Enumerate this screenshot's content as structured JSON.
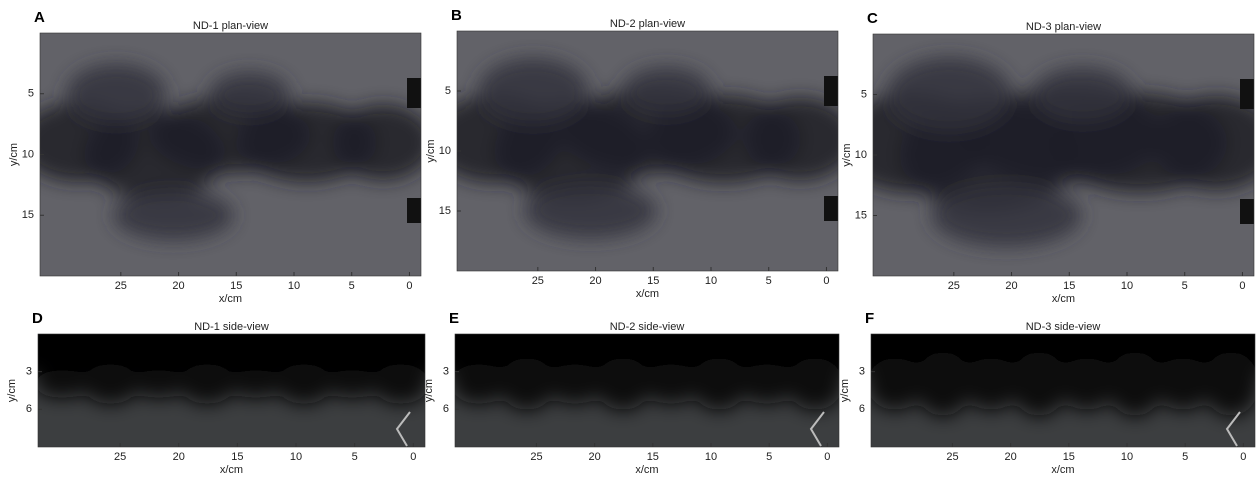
{
  "panels": [
    {
      "label": "A",
      "title": "ND-1 plan-view",
      "xlabel": "x/cm",
      "ylabel": "y/cm",
      "xlim": [
        32,
        -1
      ],
      "ylim": [
        0,
        20
      ],
      "xticks": [
        25,
        20,
        15,
        10,
        5,
        0
      ],
      "yticks": [
        5,
        10,
        15
      ]
    },
    {
      "label": "B",
      "title": "ND-2 plan-view",
      "xlabel": "x/cm",
      "ylabel": "y/cm",
      "xlim": [
        32,
        -1
      ],
      "ylim": [
        0,
        20
      ],
      "xticks": [
        25,
        20,
        15,
        10,
        5,
        0
      ],
      "yticks": [
        5,
        10,
        15
      ]
    },
    {
      "label": "C",
      "title": "ND-3 plan-view",
      "xlabel": "x/cm",
      "ylabel": "y/cm",
      "xlim": [
        32,
        -1
      ],
      "ylim": [
        0,
        20
      ],
      "xticks": [
        25,
        20,
        15,
        10,
        5,
        0
      ],
      "yticks": [
        5,
        10,
        15
      ]
    },
    {
      "label": "D",
      "title": "ND-1 side-view",
      "xlabel": "x/cm",
      "ylabel": "y/cm",
      "xlim": [
        32,
        -1
      ],
      "ylim": [
        0,
        9
      ],
      "xticks": [
        25,
        20,
        15,
        10,
        5,
        0
      ],
      "yticks": [
        3,
        6
      ]
    },
    {
      "label": "E",
      "title": "ND-2 side-view",
      "xlabel": "x/cm",
      "ylabel": "y/cm",
      "xlim": [
        32,
        -1
      ],
      "ylim": [
        0,
        9
      ],
      "xticks": [
        25,
        20,
        15,
        10,
        5,
        0
      ],
      "yticks": [
        3,
        6
      ]
    },
    {
      "label": "F",
      "title": "ND-3 side-view",
      "xlabel": "x/cm",
      "ylabel": "y/cm",
      "xlim": [
        32,
        -1
      ],
      "ylim": [
        0,
        9
      ],
      "xticks": [
        25,
        20,
        15,
        10,
        5,
        0
      ],
      "yticks": [
        3,
        6
      ]
    }
  ]
}
